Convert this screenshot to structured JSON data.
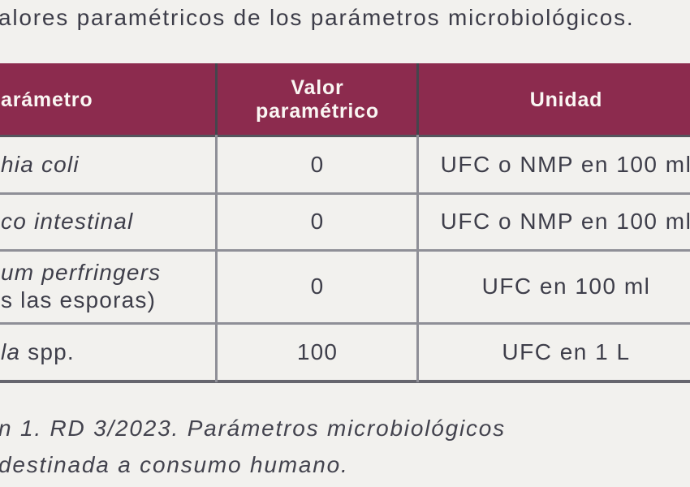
{
  "colors": {
    "accent_maroon": "#8c2b4e",
    "page_background": "#f2f1ee",
    "body_text": "#3e3e4a",
    "header_text": "#faf6f3",
    "grid_line": "#8f8f97"
  },
  "caption": "alores paramétricos de los parámetros microbiológicos.",
  "table": {
    "columns": [
      {
        "id": "parametro",
        "label": "arámetro"
      },
      {
        "id": "valor_parametrico",
        "label": "Valor paramétrico"
      },
      {
        "id": "unidad",
        "label": "Unidad"
      }
    ],
    "rows": [
      {
        "parameter_lines": [
          [
            {
              "text": "hia coli",
              "italic": true
            }
          ]
        ],
        "value": "0",
        "unit": "UFC o NMP en 100 ml"
      },
      {
        "parameter_lines": [
          [
            {
              "text": "co intestinal",
              "italic": true
            }
          ]
        ],
        "value": "0",
        "unit": "UFC o NMP en 100 ml"
      },
      {
        "parameter_lines": [
          [
            {
              "text": "um perfringers",
              "italic": true
            }
          ],
          [
            {
              "text": "s las esporas)",
              "italic": false
            }
          ]
        ],
        "value": "0",
        "unit": "UFC en 100 ml"
      },
      {
        "parameter_lines": [
          [
            {
              "text": "la",
              "italic": true
            },
            {
              "text": " spp.",
              "italic": false
            }
          ]
        ],
        "value": "100",
        "unit": "UFC en 1 L"
      }
    ]
  },
  "footnote": {
    "line1": "n 1. RD 3/2023. Parámetros microbiológicos",
    "line2": "destinada a consumo humano."
  }
}
